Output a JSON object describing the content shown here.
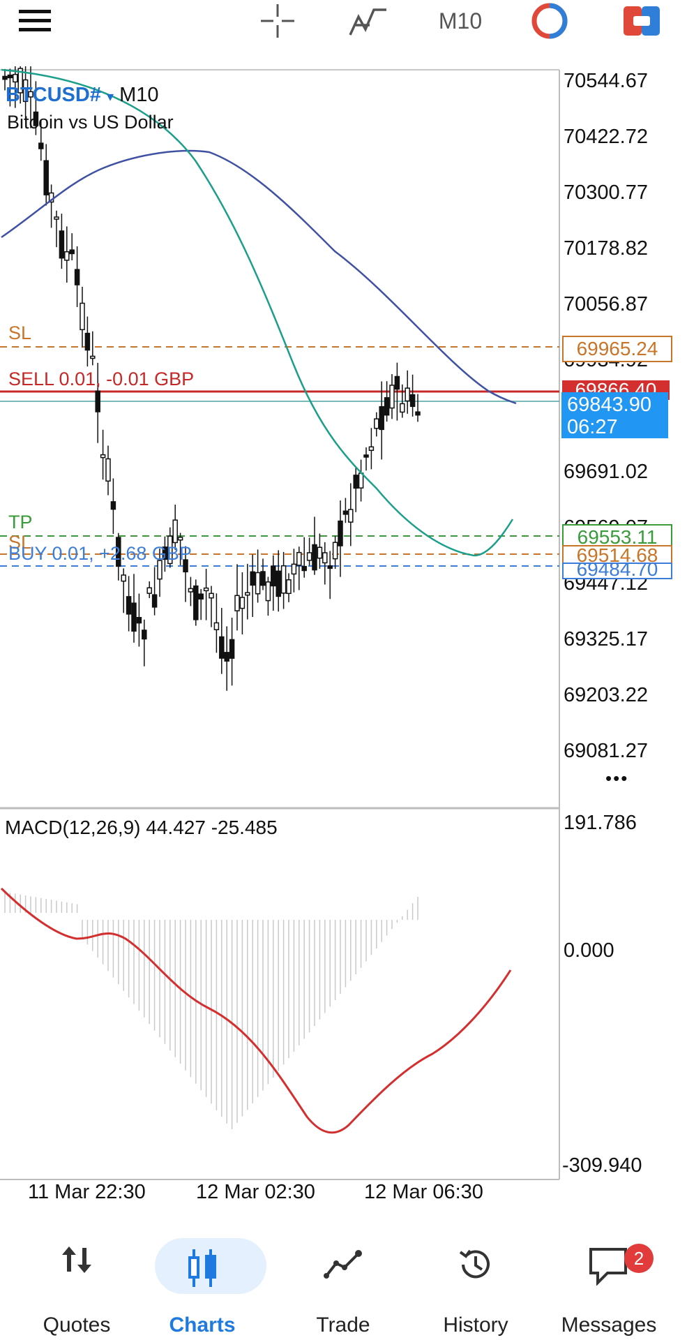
{
  "toolbar": {
    "timeframe": "M10",
    "icons": [
      "menu-icon",
      "crosshair-icon",
      "indicator-icon",
      "timeframe",
      "one-click-icon",
      "trade-panel-icon"
    ]
  },
  "chart": {
    "symbol": "BTCUSD#",
    "timeframe_label": "M10",
    "description": "Bitcoin vs US Dollar",
    "price_axis": [
      "70544.67",
      "70422.72",
      "70300.77",
      "70178.82",
      "70056.87",
      "69934.92",
      "69691.02",
      "69569.07",
      "69447.12",
      "69325.17",
      "69203.22",
      "69081.27"
    ],
    "sl_upper": {
      "label": "SL",
      "price": "69965.24",
      "color": "#c8752a"
    },
    "sell_position": {
      "label": "SELL 0.01,  -0.01 GBP",
      "price": "69866.40",
      "color": "#c62828"
    },
    "bid": {
      "price": "69843.90",
      "timer": "06:27",
      "color": "#2196f3"
    },
    "tp": {
      "label": "TP",
      "price": "69553.11",
      "color": "#3a9b3a"
    },
    "sl_lower": {
      "label": "SL",
      "price": "69514.68",
      "color": "#c8752a"
    },
    "buy_position": {
      "label": "BUY 0.01,  +2.68 GBP",
      "price": "69484.70",
      "color": "#3b7dd8"
    },
    "more": "•••"
  },
  "macd": {
    "label": "MACD(12,26,9) 44.427 -25.485",
    "axis_top": "191.786",
    "axis_zero": "0.000",
    "axis_bottom": "-309.940"
  },
  "time_axis": [
    "11 Mar 22:30",
    "12 Mar 02:30",
    "12 Mar 06:30"
  ],
  "nav": {
    "items": [
      {
        "label": "Quotes",
        "icon": "quotes-icon"
      },
      {
        "label": "Charts",
        "icon": "charts-icon"
      },
      {
        "label": "Trade",
        "icon": "trade-icon"
      },
      {
        "label": "History",
        "icon": "history-icon"
      },
      {
        "label": "Messages",
        "icon": "messages-icon"
      }
    ],
    "active": "Charts",
    "messages_badge": "2"
  }
}
